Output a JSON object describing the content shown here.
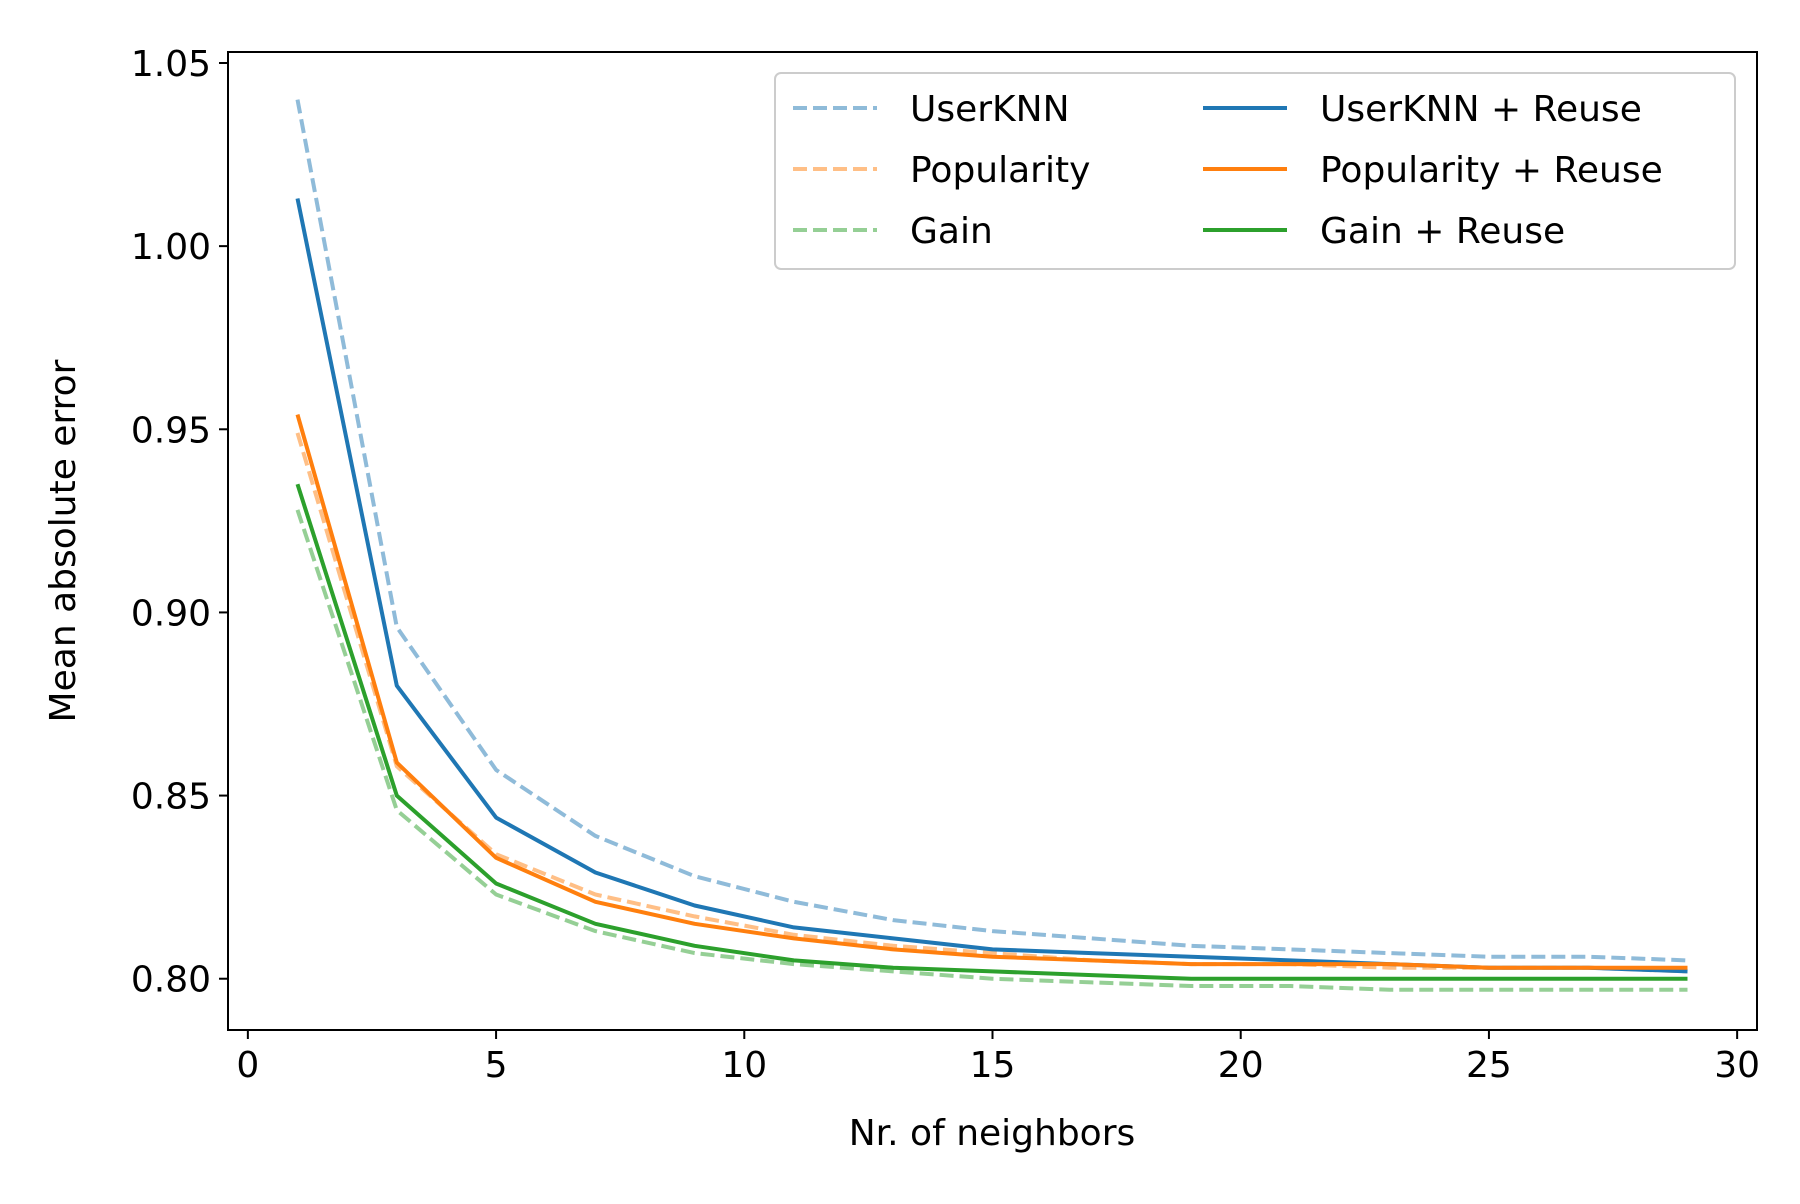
{
  "chart_data": {
    "type": "line",
    "xlabel": "Nr. of neighbors",
    "ylabel": "Mean absolute error",
    "xlim": [
      -0.4,
      30.4
    ],
    "ylim": [
      0.786,
      1.053
    ],
    "xticks": [
      0,
      5,
      10,
      15,
      20,
      25,
      30
    ],
    "xtick_labels": [
      "0",
      "5",
      "10",
      "15",
      "20",
      "25",
      "30"
    ],
    "yticks": [
      0.8,
      0.85,
      0.9,
      0.95,
      1.0,
      1.05
    ],
    "ytick_labels": [
      "0.80",
      "0.85",
      "0.90",
      "0.95",
      "1.00",
      "1.05"
    ],
    "grid": false,
    "legend_position": "top-right",
    "legend_columns": 2,
    "x": [
      1,
      3,
      5,
      7,
      9,
      11,
      13,
      15,
      17,
      19,
      21,
      23,
      25,
      27,
      29
    ],
    "series": [
      {
        "name": "UserKNN",
        "color": "#1f77b4",
        "dashed": true,
        "opacity": 0.5,
        "values": [
          1.04,
          0.896,
          0.857,
          0.839,
          0.828,
          0.821,
          0.816,
          0.813,
          0.811,
          0.809,
          0.808,
          0.807,
          0.806,
          0.806,
          0.805
        ]
      },
      {
        "name": "Popularity",
        "color": "#ff7f0e",
        "dashed": true,
        "opacity": 0.5,
        "values": [
          0.949,
          0.858,
          0.834,
          0.823,
          0.817,
          0.812,
          0.809,
          0.807,
          0.805,
          0.804,
          0.804,
          0.803,
          0.803,
          0.803,
          0.802
        ]
      },
      {
        "name": "Gain",
        "color": "#2ca02c",
        "dashed": true,
        "opacity": 0.5,
        "values": [
          0.928,
          0.846,
          0.823,
          0.813,
          0.807,
          0.804,
          0.802,
          0.8,
          0.799,
          0.798,
          0.798,
          0.797,
          0.797,
          0.797,
          0.797
        ]
      },
      {
        "name": "UserKNN + Reuse",
        "color": "#1f77b4",
        "dashed": false,
        "opacity": 1,
        "values": [
          1.013,
          0.88,
          0.844,
          0.829,
          0.82,
          0.814,
          0.811,
          0.808,
          0.807,
          0.806,
          0.805,
          0.804,
          0.803,
          0.803,
          0.802
        ]
      },
      {
        "name": "Popularity + Reuse",
        "color": "#ff7f0e",
        "dashed": false,
        "opacity": 1,
        "values": [
          0.954,
          0.859,
          0.833,
          0.821,
          0.815,
          0.811,
          0.808,
          0.806,
          0.805,
          0.804,
          0.804,
          0.804,
          0.803,
          0.803,
          0.803
        ]
      },
      {
        "name": "Gain + Reuse",
        "color": "#2ca02c",
        "dashed": false,
        "opacity": 1,
        "values": [
          0.935,
          0.85,
          0.826,
          0.815,
          0.809,
          0.805,
          0.803,
          0.802,
          0.801,
          0.8,
          0.8,
          0.8,
          0.8,
          0.8,
          0.8
        ]
      }
    ]
  }
}
